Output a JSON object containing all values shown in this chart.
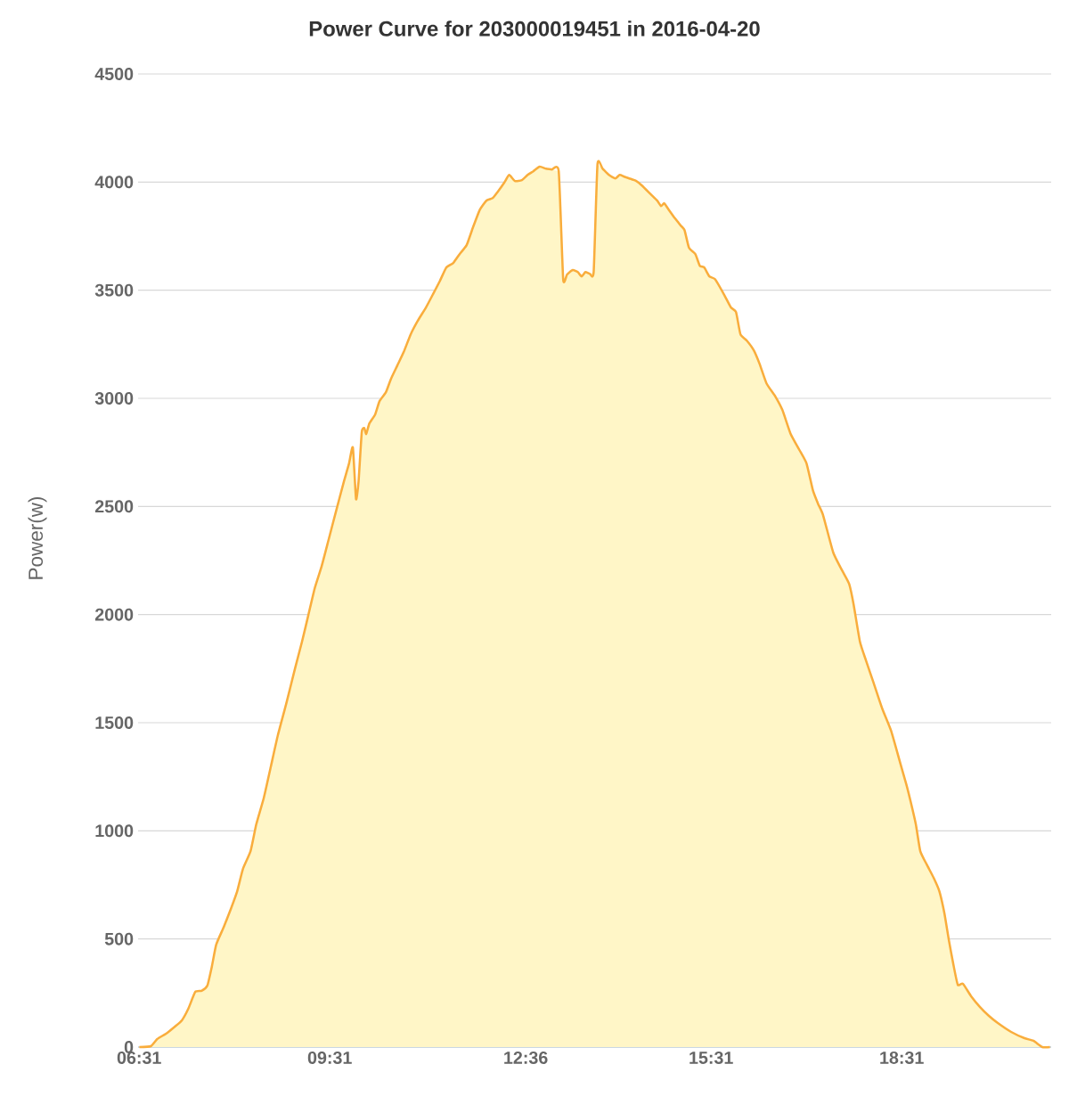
{
  "chart_data": {
    "type": "area",
    "title": "Power Curve for 203000019451 in 2016-04-20",
    "ylabel": "Power(w)",
    "xlim": [
      6.5,
      20.87
    ],
    "ylim": [
      0,
      4500
    ],
    "xticks": [
      {
        "value": 6.517,
        "label": "06:31"
      },
      {
        "value": 9.517,
        "label": "09:31"
      },
      {
        "value": 12.6,
        "label": "12:36"
      },
      {
        "value": 15.517,
        "label": "15:31"
      },
      {
        "value": 18.517,
        "label": "18:31"
      }
    ],
    "yticks": [
      0,
      500,
      1000,
      1500,
      2000,
      2500,
      3000,
      3500,
      4000,
      4500
    ],
    "grid": "y",
    "series": [
      {
        "color": "#f9ad3c",
        "x": [
          6.52,
          6.7,
          6.8,
          6.94,
          7.08,
          7.19,
          7.29,
          7.4,
          7.5,
          7.59,
          7.66,
          7.73,
          7.85,
          7.96,
          8.06,
          8.15,
          8.27,
          8.36,
          8.48,
          8.59,
          8.7,
          8.83,
          8.97,
          9.08,
          9.18,
          9.28,
          9.39,
          9.5,
          9.61,
          9.74,
          9.82,
          9.88,
          9.93,
          9.97,
          10.02,
          10.06,
          10.09,
          10.14,
          10.23,
          10.3,
          10.4,
          10.48,
          10.58,
          10.68,
          10.79,
          10.9,
          11.03,
          11.14,
          11.25,
          11.35,
          11.46,
          11.56,
          11.67,
          11.77,
          11.88,
          11.98,
          12.08,
          12.16,
          12.26,
          12.34,
          12.43,
          12.54,
          12.63,
          12.72,
          12.82,
          12.92,
          13.01,
          13.12,
          13.19,
          13.25,
          13.34,
          13.42,
          13.48,
          13.54,
          13.61,
          13.67,
          13.73,
          13.81,
          13.91,
          14.01,
          14.08,
          14.15,
          14.23,
          14.34,
          14.43,
          14.57,
          14.67,
          14.73,
          14.78,
          14.85,
          14.95,
          15.04,
          15.1,
          15.17,
          15.27,
          15.34,
          15.41,
          15.49,
          15.58,
          15.72,
          15.83,
          15.91,
          15.98,
          16.08,
          16.19,
          16.28,
          16.39,
          16.53,
          16.64,
          16.77,
          16.91,
          17.02,
          17.12,
          17.2,
          17.28,
          17.44,
          17.58,
          17.69,
          17.76,
          17.86,
          17.96,
          18.07,
          18.21,
          18.35,
          18.49,
          18.59,
          18.66,
          18.74,
          18.81,
          18.91,
          19.02,
          19.11,
          19.19,
          19.26,
          19.33,
          19.4,
          19.48,
          19.61,
          19.75,
          19.89,
          20.03,
          20.24,
          20.45,
          20.59,
          20.73,
          20.85
        ],
        "values": [
          0,
          4,
          37,
          62,
          95,
          124,
          177,
          255,
          260,
          284,
          371,
          474,
          556,
          639,
          721,
          824,
          906,
          1030,
          1154,
          1298,
          1442,
          1586,
          1751,
          1875,
          1998,
          2122,
          2225,
          2348,
          2472,
          2616,
          2699,
          2773,
          2534,
          2616,
          2843,
          2863,
          2835,
          2884,
          2925,
          2987,
          3028,
          3090,
          3152,
          3214,
          3296,
          3358,
          3420,
          3481,
          3543,
          3605,
          3626,
          3667,
          3708,
          3790,
          3873,
          3914,
          3926,
          3955,
          3996,
          4033,
          4005,
          4009,
          4033,
          4050,
          4071,
          4062,
          4058,
          4050,
          3551,
          3572,
          3593,
          3584,
          3564,
          3584,
          3576,
          3584,
          4083,
          4062,
          4033,
          4017,
          4033,
          4025,
          4017,
          4005,
          3984,
          3943,
          3914,
          3889,
          3902,
          3873,
          3832,
          3799,
          3778,
          3696,
          3667,
          3613,
          3605,
          3564,
          3551,
          3481,
          3420,
          3399,
          3296,
          3267,
          3222,
          3160,
          3069,
          3008,
          2946,
          2835,
          2760,
          2699,
          2575,
          2513,
          2460,
          2287,
          2204,
          2142,
          2048,
          1875,
          1784,
          1689,
          1566,
          1463,
          1318,
          1215,
          1133,
          1030,
          906,
          845,
          783,
          721,
          618,
          494,
          383,
          288,
          293,
          235,
          185,
          144,
          111,
          70,
          41,
          29,
          0,
          0
        ]
      }
    ]
  }
}
